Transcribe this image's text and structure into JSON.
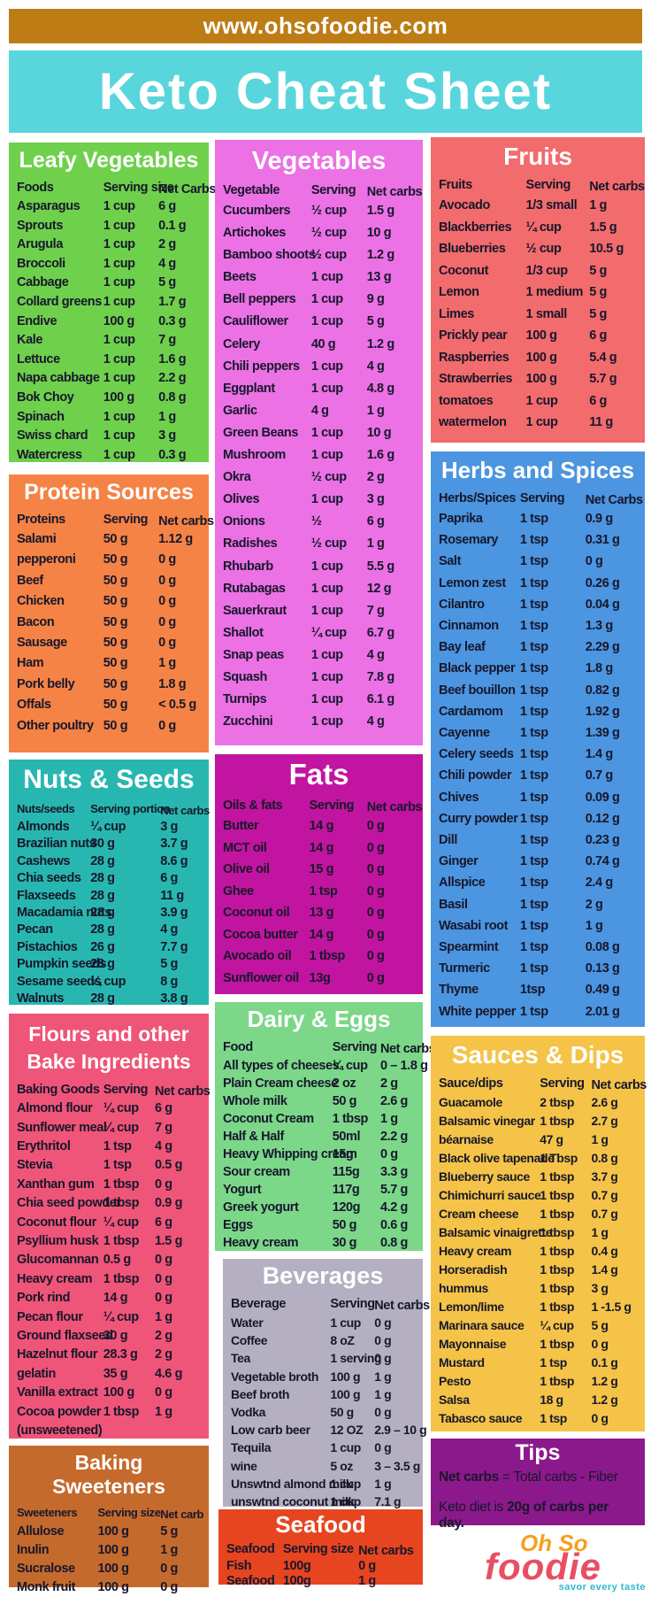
{
  "site_banner": {
    "url_text": "www.ohsofoodie.com",
    "bg": "#BE7C15"
  },
  "main_title": {
    "text": "Keto Cheat Sheet",
    "bg": "#58D6DC"
  },
  "panels": [
    {
      "id": "leafy-vegetables",
      "title": "Leafy Vegetables",
      "bg": "#6FD04C",
      "columns": [
        "Foods",
        "Serving size",
        "Net Carbs"
      ],
      "rows": [
        [
          "Asparagus",
          "1 cup",
          "6 g"
        ],
        [
          "Sprouts",
          "1 cup",
          "0.1 g"
        ],
        [
          "Arugula",
          "1 cup",
          "2 g"
        ],
        [
          "Broccoli",
          "1 cup",
          "4 g"
        ],
        [
          "Cabbage",
          "1 cup",
          "5 g"
        ],
        [
          "Collard greens",
          "1 cup",
          "1.7 g"
        ],
        [
          "Endive",
          "100 g",
          "0.3 g"
        ],
        [
          "Kale",
          "1 cup",
          "7 g"
        ],
        [
          "Lettuce",
          "1 cup",
          "1.6 g"
        ],
        [
          "Napa cabbage",
          "1 cup",
          "2.2 g"
        ],
        [
          "Bok Choy",
          "100 g",
          "0.8 g"
        ],
        [
          "Spinach",
          "1 cup",
          "1 g"
        ],
        [
          "Swiss chard",
          "1 cup",
          "3 g"
        ],
        [
          "Watercress",
          "1 cup",
          "0.3 g"
        ]
      ]
    },
    {
      "id": "protein-sources",
      "title": "Protein Sources",
      "bg": "#F48345",
      "columns": [
        "Proteins",
        "Serving",
        "Net carbs"
      ],
      "rows": [
        [
          "Salami",
          "50 g",
          "1.12 g"
        ],
        [
          "pepperoni",
          "50 g",
          "0 g"
        ],
        [
          "Beef",
          "50 g",
          "0 g"
        ],
        [
          "Chicken",
          "50 g",
          "0 g"
        ],
        [
          "Bacon",
          "50 g",
          "0 g"
        ],
        [
          "Sausage",
          "50 g",
          "0 g"
        ],
        [
          "Ham",
          "50 g",
          "1 g"
        ],
        [
          "Pork belly",
          "50 g",
          "1.8 g"
        ],
        [
          "Offals",
          "50 g",
          "< 0.5 g"
        ],
        [
          "Other poultry",
          "50 g",
          "0 g"
        ]
      ]
    },
    {
      "id": "nuts-seeds",
      "title": "Nuts & Seeds",
      "bg": "#28B7B0",
      "columns": [
        "Nuts/seeds",
        "Serving portion",
        "Net carbs"
      ],
      "rows": [
        [
          "Almonds",
          "¼ cup",
          "3 g"
        ],
        [
          "Brazilian nuts",
          "30 g",
          "3.7 g"
        ],
        [
          "Cashews",
          "28 g",
          "8.6 g"
        ],
        [
          "Chia seeds",
          "28 g",
          "6 g"
        ],
        [
          "Flaxseeds",
          "28 g",
          "11 g"
        ],
        [
          "Macadamia nuts",
          "28 g",
          "3.9 g"
        ],
        [
          "Pecan",
          "28 g",
          "4 g"
        ],
        [
          "Pistachios",
          "26 g",
          "7.7 g"
        ],
        [
          "Pumpkin seeds",
          "28 g",
          "5 g"
        ],
        [
          "Sesame seeds",
          "¼ cup",
          "8 g"
        ],
        [
          "Walnuts",
          "28 g",
          "3.8 g"
        ]
      ]
    },
    {
      "id": "flours-bake-ingredients",
      "title_lines": [
        "Flours and other",
        "Bake Ingredients"
      ],
      "bg": "#EF5578",
      "columns": [
        "Baking Goods",
        "Serving",
        "Net carbs"
      ],
      "rows": [
        [
          "Almond flour",
          "¼ cup",
          "6 g"
        ],
        [
          "Sunflower meal",
          "¼ cup",
          "7 g"
        ],
        [
          "Erythritol",
          "1 tsp",
          "4 g"
        ],
        [
          "Stevia",
          "1 tsp",
          "0.5 g"
        ],
        [
          "Xanthan gum",
          "1 tbsp",
          "0 g"
        ],
        [
          "Chia seed powder",
          "1 tbsp",
          "0.9 g"
        ],
        [
          "Coconut flour",
          "¼ cup",
          "6 g"
        ],
        [
          "Psyllium husk",
          "1 tbsp",
          "1.5 g"
        ],
        [
          "Glucomannan",
          "0.5 g",
          "0 g"
        ],
        [
          "Heavy cream",
          "1 tbsp",
          "0 g"
        ],
        [
          "Pork rind",
          "14 g",
          "0 g"
        ],
        [
          "Pecan flour",
          "¼ cup",
          "1 g"
        ],
        [
          "Ground flaxseed",
          "30 g",
          "2 g"
        ],
        [
          "Hazelnut flour",
          "28.3 g",
          "2 g"
        ],
        [
          "gelatin",
          "35 g",
          "4.6 g"
        ],
        [
          "Vanilla extract",
          "100 g",
          "0 g"
        ],
        [
          "Cocoa powder",
          "1 tbsp",
          "1 g"
        ],
        [
          "(unsweetened)",
          "",
          ""
        ]
      ]
    },
    {
      "id": "baking-sweeteners",
      "title": "Baking Sweeteners",
      "bg": "#C56A2D",
      "columns": [
        "Sweeteners",
        "Serving size",
        "Net carb"
      ],
      "rows": [
        [
          "Allulose",
          "100 g",
          "5 g"
        ],
        [
          "Inulin",
          "100 g",
          "1 g"
        ],
        [
          "Sucralose",
          "100 g",
          "0 g"
        ],
        [
          "Monk fruit",
          "100 g",
          "0 g"
        ]
      ]
    },
    {
      "id": "vegetables",
      "title": "Vegetables",
      "bg": "#EB71E5",
      "columns": [
        "Vegetable",
        "Serving",
        "Net carbs"
      ],
      "rows": [
        [
          "Cucumbers",
          "½ cup",
          "1.5 g"
        ],
        [
          "Artichokes",
          "½ cup",
          "10 g"
        ],
        [
          "Bamboo shoots",
          "½ cup",
          "1.2 g"
        ],
        [
          "Beets",
          "1 cup",
          "13 g"
        ],
        [
          "Bell peppers",
          "1 cup",
          "9 g"
        ],
        [
          "Cauliflower",
          "1 cup",
          "5 g"
        ],
        [
          "Celery",
          "40 g",
          "1.2 g"
        ],
        [
          "Chili peppers",
          "1 cup",
          "4 g"
        ],
        [
          "Eggplant",
          "1 cup",
          "4.8 g"
        ],
        [
          "Garlic",
          "4 g",
          "1 g"
        ],
        [
          "Green Beans",
          "1 cup",
          "10 g"
        ],
        [
          "Mushroom",
          "1 cup",
          "1.6 g"
        ],
        [
          "Okra",
          "½ cup",
          "2 g"
        ],
        [
          "Olives",
          "1 cup",
          "3 g"
        ],
        [
          "Onions",
          "½",
          "6 g"
        ],
        [
          "Radishes",
          "½ cup",
          "1 g"
        ],
        [
          "Rhubarb",
          "1 cup",
          "5.5 g"
        ],
        [
          "Rutabagas",
          "1 cup",
          "12 g"
        ],
        [
          "Sauerkraut",
          "1 cup",
          "7 g"
        ],
        [
          "Shallot",
          "¼ cup",
          "6.7 g"
        ],
        [
          "Snap peas",
          "1 cup",
          "4 g"
        ],
        [
          "Squash",
          "1 cup",
          "7.8 g"
        ],
        [
          "Turnips",
          "1 cup",
          "6.1 g"
        ],
        [
          "Zucchini",
          "1 cup",
          "4 g"
        ]
      ]
    },
    {
      "id": "fats",
      "title": "Fats",
      "bg": "#C114A0",
      "columns": [
        "Oils & fats",
        "Serving",
        "Net carbs"
      ],
      "rows": [
        [
          "Butter",
          "14 g",
          "0 g"
        ],
        [
          "MCT oil",
          "14 g",
          "0 g"
        ],
        [
          "Olive oil",
          "15 g",
          "0 g"
        ],
        [
          "Ghee",
          "1 tsp",
          "0 g"
        ],
        [
          "Coconut oil",
          "13 g",
          "0 g"
        ],
        [
          "Cocoa butter",
          "14 g",
          "0 g"
        ],
        [
          "Avocado oil",
          "1 tbsp",
          "0 g"
        ],
        [
          "Sunflower oil",
          "13g",
          "0 g"
        ]
      ]
    },
    {
      "id": "dairy-eggs",
      "title": "Dairy & Eggs",
      "bg": "#7CD789",
      "columns": [
        "Food",
        "Serving",
        "Net carbs"
      ],
      "rows": [
        [
          "All types of cheeses",
          "¼ cup",
          "0 – 1.8 g"
        ],
        [
          "Plain Cream cheese",
          "2 oz",
          "2 g"
        ],
        [
          "Whole milk",
          "50 g",
          "2.6 g"
        ],
        [
          "Coconut Cream",
          "1 tbsp",
          "1 g"
        ],
        [
          "Half & Half",
          "50ml",
          "2.2 g"
        ],
        [
          "Heavy Whipping cream",
          "15g",
          "0 g"
        ],
        [
          "Sour cream",
          "115g",
          "3.3 g"
        ],
        [
          "Yogurt",
          "117g",
          "5.7 g"
        ],
        [
          "Greek yogurt",
          "120g",
          "4.2 g"
        ],
        [
          "Eggs",
          "50 g",
          "0.6 g"
        ],
        [
          "Heavy cream",
          "30 g",
          "0.8 g"
        ]
      ]
    },
    {
      "id": "beverages",
      "title": "Beverages",
      "bg": "#B5AFC2",
      "columns": [
        "Beverage",
        "Serving",
        "Net carbs"
      ],
      "rows": [
        [
          "Water",
          "1 cup",
          "0 g"
        ],
        [
          "Coffee",
          "8 oZ",
          "0 g"
        ],
        [
          "Tea",
          "1 serving",
          "0 g"
        ],
        [
          "Vegetable broth",
          "100 g",
          "1 g"
        ],
        [
          "Beef broth",
          "100 g",
          "1 g"
        ],
        [
          "Vodka",
          "50 g",
          "0 g"
        ],
        [
          "Low carb beer",
          "12 OZ",
          "2.9 – 10 g"
        ],
        [
          "Tequila",
          "1 cup",
          "0 g"
        ],
        [
          "wine",
          "5 oz",
          "3 – 3.5 g"
        ],
        [
          "Unswtnd almond milk",
          "1 cup",
          "1 g"
        ],
        [
          "unswtnd coconut milk",
          "1 cup",
          "7.1 g"
        ]
      ]
    },
    {
      "id": "seafood",
      "title": "Seafood",
      "bg": "#E7451F",
      "columns": [
        "Seafood",
        "Serving size",
        "Net carbs"
      ],
      "rows": [
        [
          "Fish",
          "100g",
          "0 g"
        ],
        [
          "Seafood",
          "100g",
          "1 g"
        ]
      ]
    },
    {
      "id": "fruits",
      "title": "Fruits",
      "bg": "#F26B6D",
      "columns": [
        "Fruits",
        "Serving",
        "Net carbs"
      ],
      "rows": [
        [
          "Avocado",
          "1/3 small",
          "1 g"
        ],
        [
          "Blackberries",
          "¼ cup",
          "1.5 g"
        ],
        [
          "Blueberries",
          "½ cup",
          "10.5 g"
        ],
        [
          "Coconut",
          "1/3 cup",
          "5 g"
        ],
        [
          "Lemon",
          "1 medium",
          "5 g"
        ],
        [
          "Limes",
          "1 small",
          "5 g"
        ],
        [
          "Prickly pear",
          "100 g",
          "6 g"
        ],
        [
          "Raspberries",
          "100 g",
          "5.4 g"
        ],
        [
          "Strawberries",
          "100 g",
          "5.7 g"
        ],
        [
          "tomatoes",
          "1 cup",
          "6 g"
        ],
        [
          "watermelon",
          "1 cup",
          "11 g"
        ]
      ]
    },
    {
      "id": "herbs-spices",
      "title": "Herbs and Spices",
      "bg": "#4C95E0",
      "columns": [
        "Herbs/Spices",
        "Serving",
        "Net Carbs"
      ],
      "rows": [
        [
          "Paprika",
          "1 tsp",
          "0.9 g"
        ],
        [
          "Rosemary",
          "1 tsp",
          "0.31 g"
        ],
        [
          "Salt",
          "1 tsp",
          "0 g"
        ],
        [
          "Lemon zest",
          "1 tsp",
          "0.26 g"
        ],
        [
          "Cilantro",
          "1 tsp",
          "0.04 g"
        ],
        [
          "Cinnamon",
          "1 tsp",
          "1.3 g"
        ],
        [
          "Bay leaf",
          "1 tsp",
          "2.29 g"
        ],
        [
          "Black pepper",
          "1 tsp",
          "1.8 g"
        ],
        [
          "Beef bouillon",
          "1 tsp",
          "0.82 g"
        ],
        [
          "Cardamom",
          "1 tsp",
          "1.92 g"
        ],
        [
          "Cayenne",
          "1 tsp",
          "1.39 g"
        ],
        [
          "Celery seeds",
          "1 tsp",
          "1.4 g"
        ],
        [
          "Chili powder",
          "1 tsp",
          "0.7 g"
        ],
        [
          "Chives",
          "1 tsp",
          "0.09 g"
        ],
        [
          "Curry powder",
          "1 tsp",
          "0.12 g"
        ],
        [
          "Dill",
          "1 tsp",
          "0.23 g"
        ],
        [
          "Ginger",
          "1 tsp",
          "0.74 g"
        ],
        [
          "Allspice",
          "1 tsp",
          "2.4 g"
        ],
        [
          "Basil",
          "1 tsp",
          "2 g"
        ],
        [
          "Wasabi root",
          "1 tsp",
          "1 g"
        ],
        [
          "Spearmint",
          "1 tsp",
          "0.08 g"
        ],
        [
          "Turmeric",
          "1 tsp",
          "0.13 g"
        ],
        [
          "Thyme",
          "1tsp",
          "0.49 g"
        ],
        [
          "White pepper",
          "1 tsp",
          "2.01 g"
        ]
      ]
    },
    {
      "id": "sauces-dips",
      "title": "Sauces & Dips",
      "bg": "#F4C347",
      "columns": [
        "Sauce/dips",
        "Serving",
        "Net carbs"
      ],
      "rows": [
        [
          "Guacamole",
          "2 tbsp",
          "2.6 g"
        ],
        [
          "Balsamic vinegar",
          "1 tbsp",
          "2.7 g"
        ],
        [
          "béarnaise",
          "47 g",
          "1 g"
        ],
        [
          "Black olive tapenade",
          "1 Tbsp",
          "0.8 g"
        ],
        [
          "Blueberry sauce",
          "1 tbsp",
          "3.7 g"
        ],
        [
          "Chimichurri sauce",
          "1 tbsp",
          "0.7 g"
        ],
        [
          "Cream cheese",
          "1 tbsp",
          "0.7 g"
        ],
        [
          "Balsamic vinaigrette",
          "1 tbsp",
          "1 g"
        ],
        [
          "Heavy cream",
          "1 tbsp",
          "0.4 g"
        ],
        [
          "Horseradish",
          "1 tbsp",
          "1.4 g"
        ],
        [
          "hummus",
          "1 tbsp",
          "3 g"
        ],
        [
          "Lemon/lime",
          "1 tbsp",
          "1 -1.5 g"
        ],
        [
          "Marinara sauce",
          "¼ cup",
          "5 g"
        ],
        [
          "Mayonnaise",
          "1 tbsp",
          "0 g"
        ],
        [
          "Mustard",
          "1 tsp",
          "0.1 g"
        ],
        [
          "Pesto",
          "1 tbsp",
          "1.2 g"
        ],
        [
          "Salsa",
          "18 g",
          "1.2 g"
        ],
        [
          "Tabasco sauce",
          "1 tsp",
          "0 g"
        ]
      ]
    }
  ],
  "tips": {
    "title": "Tips",
    "bg": "#8C198B",
    "line1_bold": "Net carbs",
    "line1_rest": " = Total carbs - Fiber",
    "line2_pre": "Keto diet is ",
    "line2_bold": "20g of carbs per day."
  },
  "logo": {
    "brand_top": "Oh So",
    "brand_main": "foodie",
    "tagline": "savor every taste",
    "colors": {
      "top": "#F6A01F",
      "main": "#E84F62",
      "tagline": "#2FB9CF"
    }
  }
}
